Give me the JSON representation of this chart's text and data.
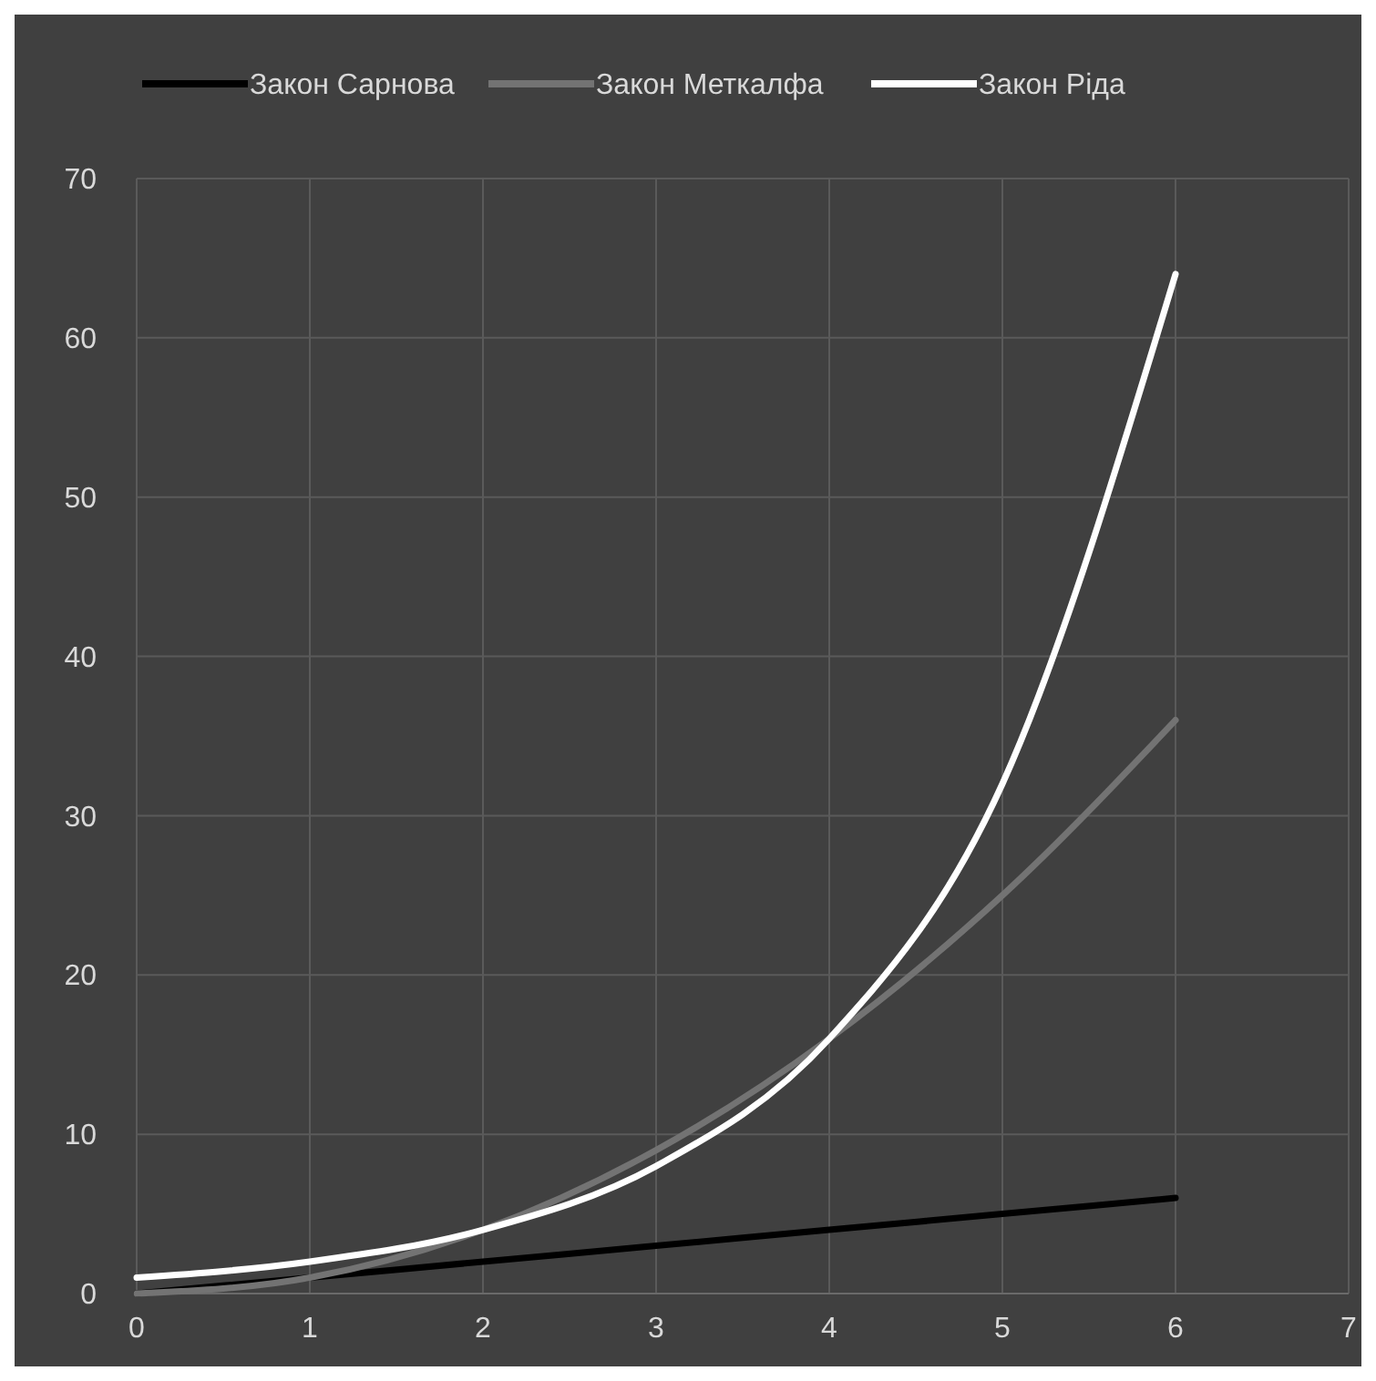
{
  "chart_data": {
    "type": "line",
    "x": [
      0,
      1,
      2,
      3,
      4,
      5,
      6
    ],
    "series": [
      {
        "name": "Закон Сарнова",
        "color": "#000000",
        "values": [
          0,
          1,
          2,
          3,
          4,
          5,
          6
        ]
      },
      {
        "name": "Закон Меткалфа",
        "color": "#737373",
        "values": [
          0,
          1,
          4,
          9,
          16,
          25,
          36
        ]
      },
      {
        "name": "Закон Ріда",
        "color": "#ffffff",
        "values": [
          1,
          2,
          4,
          8,
          16,
          32,
          64
        ]
      }
    ],
    "xlim": [
      0,
      7
    ],
    "xticks": [
      0,
      1,
      2,
      3,
      4,
      5,
      6,
      7
    ],
    "ylim": [
      0,
      70
    ],
    "yticks": [
      0,
      10,
      20,
      30,
      40,
      50,
      60,
      70
    ],
    "grid": true,
    "legend": "top",
    "marker": "none",
    "line_style": "solid"
  }
}
